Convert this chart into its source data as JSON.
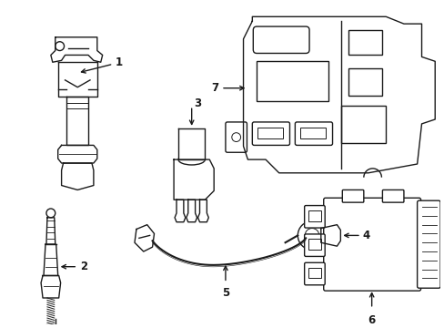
{
  "background_color": "#ffffff",
  "line_color": "#1a1a1a",
  "line_width": 1.0,
  "label_fontsize": 8.5,
  "fig_width": 4.89,
  "fig_height": 3.6,
  "dpi": 100
}
